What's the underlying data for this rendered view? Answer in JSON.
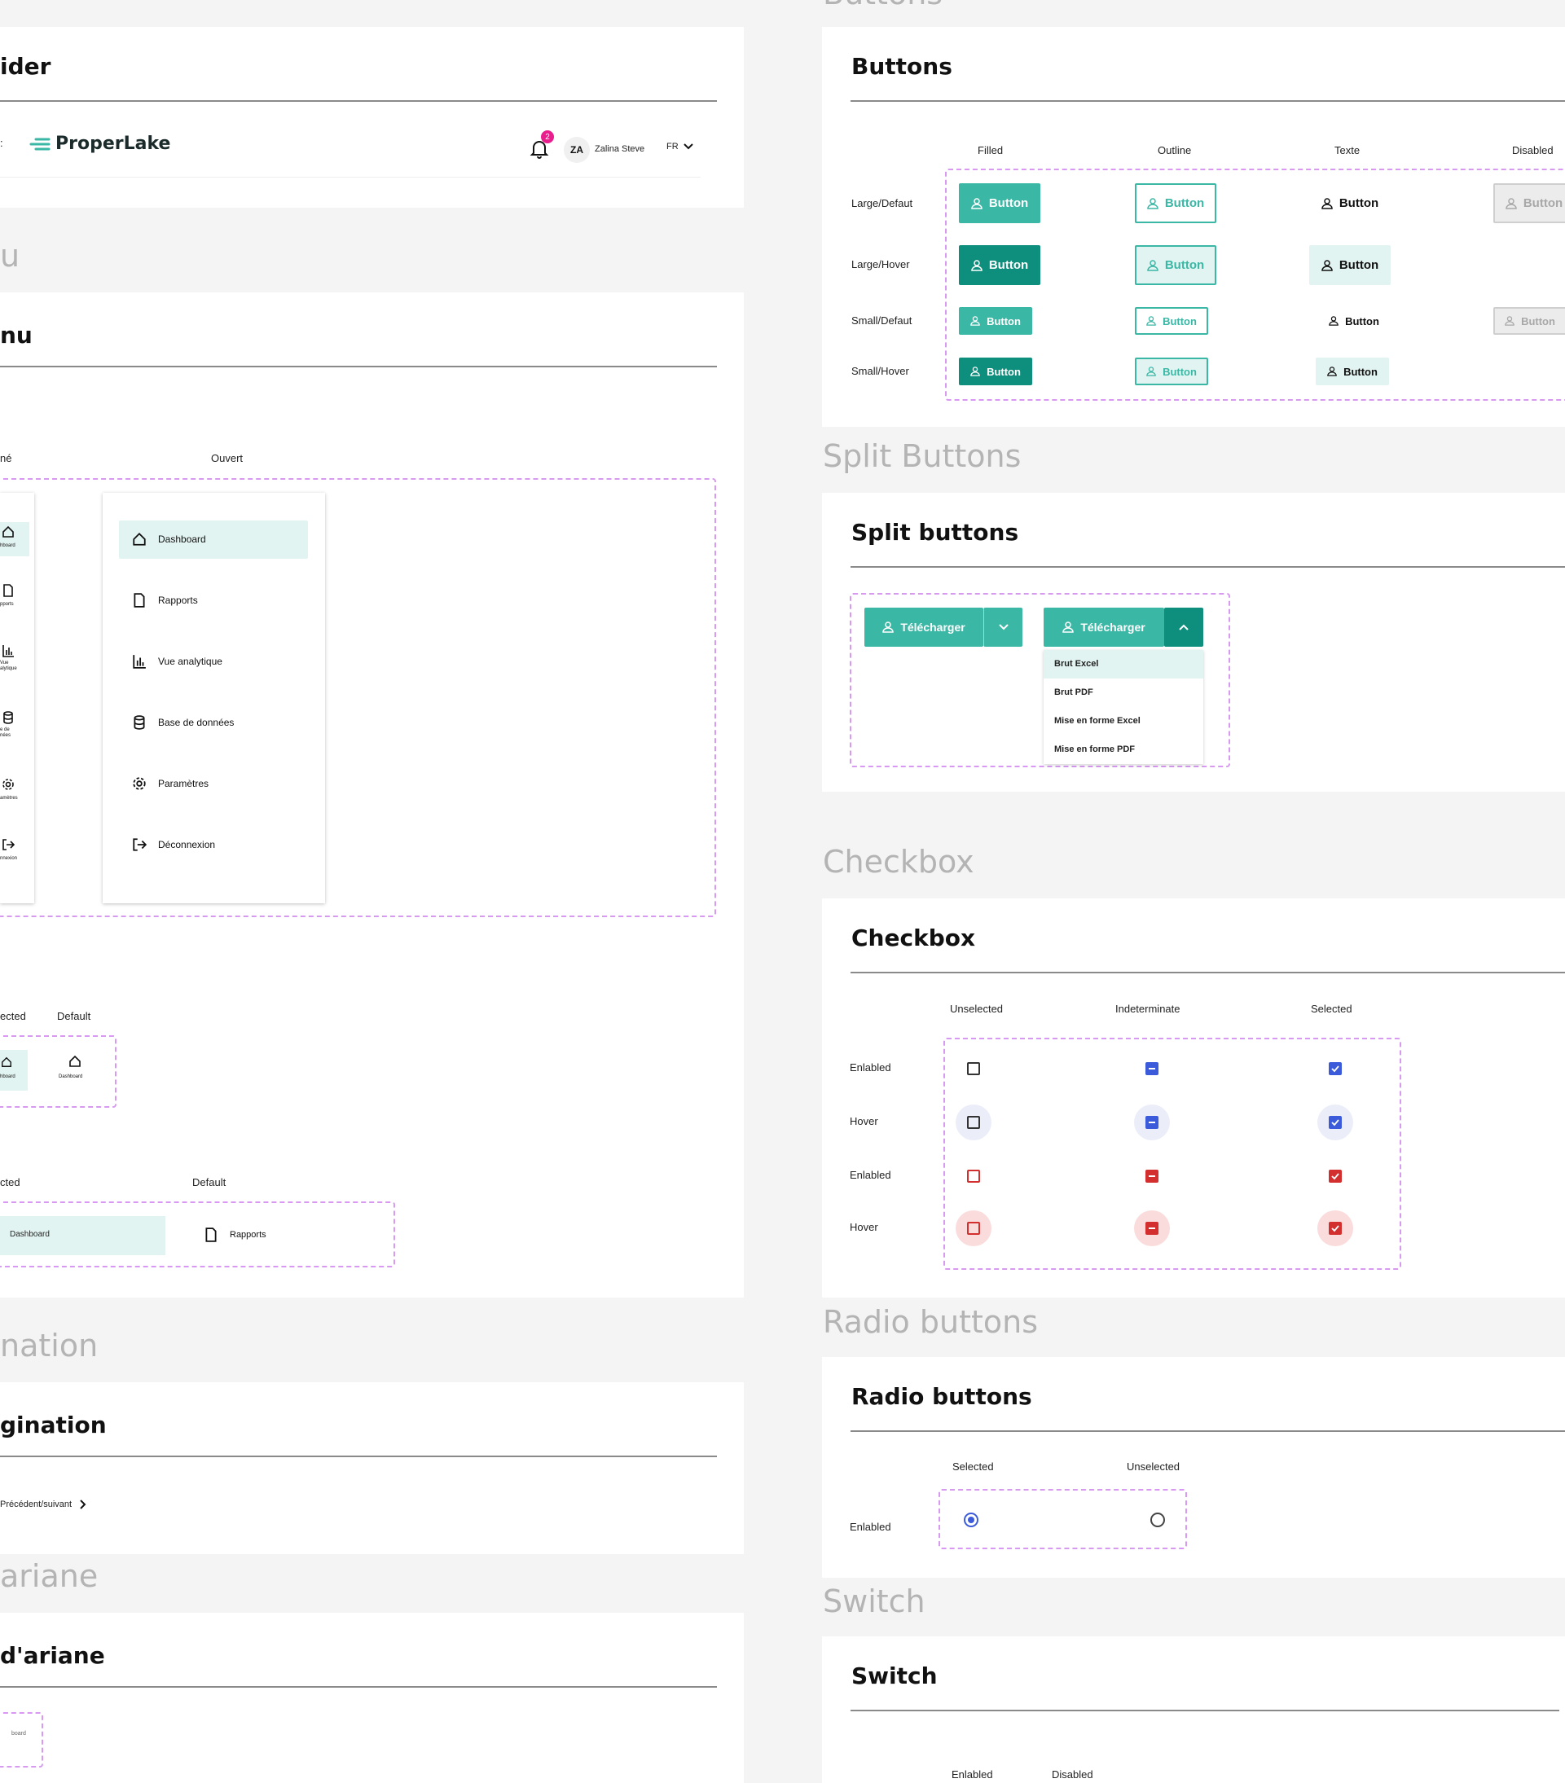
{
  "colors": {
    "teal": "#3bb7a5",
    "teal_dark": "#0e8e7d",
    "teal_light": "#e2f4f1",
    "blue": "#3b5bdb",
    "red": "#d32f2f",
    "dashed": "#d79af0",
    "badge": "#e91e8c"
  },
  "header": {
    "section_title": "ider",
    "logo_text": "ProperLake",
    "badge_count": "2",
    "avatar_initials": "ZA",
    "user_name": "Zalina Steve",
    "lang": "FR"
  },
  "menu": {
    "section_title": "u",
    "card_title": "nu",
    "label_closed": "né",
    "label_open": "Ouvert",
    "collapsed_items": [
      "hboard",
      "pports",
      "Vue\nalytique",
      "e de\nnées",
      "amètres",
      "nnexion"
    ],
    "open_items": [
      "Dashboard",
      "Rapports",
      "Vue analytique",
      "Base de données",
      "Paramètres",
      "Déconnexion"
    ]
  },
  "menu_item_states_small": {
    "label_selected": "ected",
    "label_default": "Default",
    "item_label": "Dashboard",
    "item_label_cut": "hboard"
  },
  "menu_item_states_large": {
    "label_selected": "cted",
    "label_default": "Default",
    "selected_label": "Dashboard",
    "default_label": "Rapports"
  },
  "pagination": {
    "section_title": "nation",
    "card_title": "gination",
    "text": "Précédent/suivant"
  },
  "breadcrumb": {
    "section_title": "ariane",
    "card_title": "d'ariane",
    "item": "board"
  },
  "buttons": {
    "section_title": "Buttons",
    "card_title": "Buttons",
    "columns": [
      "Filled",
      "Outline",
      "Texte",
      "Disabled"
    ],
    "rows": [
      "Large/Defaut",
      "Large/Hover",
      "Small/Defaut",
      "Small/Hover"
    ],
    "label": "Button",
    "disabled_label": "Button"
  },
  "split_buttons": {
    "section_title": "Split Buttons",
    "card_title": "Split buttons",
    "label": "Télécharger",
    "options": [
      "Brut Excel",
      "Brut PDF",
      "Mise en forme Excel",
      "Mise en forme PDF"
    ]
  },
  "checkbox": {
    "section_title": "Checkbox",
    "card_title": "Checkbox",
    "columns": [
      "Unselected",
      "Indeterminate",
      "Selected"
    ],
    "rows": [
      "Enlabled",
      "Hover",
      "Enlabled",
      "Hover"
    ]
  },
  "radio": {
    "section_title": "Radio buttons",
    "card_title": "Radio buttons",
    "columns": [
      "Selected",
      "Unselected"
    ],
    "row": "Enlabled"
  },
  "switch": {
    "section_title": "Switch",
    "card_title": "Switch",
    "columns": [
      "Enlabled",
      "Disabled"
    ]
  }
}
